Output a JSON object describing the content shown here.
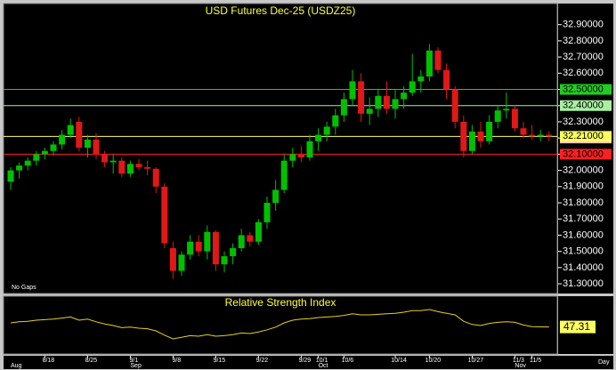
{
  "chart_data": [
    {
      "type": "candlestick",
      "title": "USD Futures Dec-25 (USDZ25)",
      "annotation": "No Gaps",
      "period": "Day",
      "up_color": "#00c000",
      "down_color": "#e01818",
      "categories": [
        null,
        null,
        null,
        null,
        "8/18",
        null,
        null,
        null,
        null,
        "8/25",
        null,
        null,
        null,
        null,
        "9/1",
        null,
        null,
        null,
        null,
        "9/8",
        null,
        null,
        null,
        null,
        "9/15",
        null,
        null,
        null,
        null,
        "9/22",
        null,
        null,
        null,
        null,
        "9/29",
        null,
        "10/1",
        null,
        null,
        "10/6",
        null,
        null,
        null,
        null,
        null,
        "10/14",
        null,
        null,
        null,
        "10/20",
        null,
        null,
        null,
        null,
        "10/27",
        null,
        null,
        null,
        null,
        "11/3",
        null,
        "11/5",
        null,
        null
      ],
      "month_labels": [
        "Aug",
        null,
        null,
        null,
        null,
        null,
        null,
        null,
        null,
        null,
        null,
        null,
        null,
        null,
        "Sep",
        null,
        null,
        null,
        null,
        null,
        null,
        null,
        null,
        null,
        null,
        null,
        null,
        null,
        null,
        null,
        null,
        null,
        null,
        null,
        null,
        null,
        "Oct",
        null,
        null,
        null,
        null,
        null,
        null,
        null,
        null,
        null,
        null,
        null,
        null,
        null,
        null,
        null,
        null,
        null,
        null,
        null,
        null,
        null,
        null,
        "Nov",
        null,
        null,
        null,
        null
      ],
      "open": [
        31.93,
        32.0,
        32.03,
        32.06,
        32.1,
        32.12,
        32.16,
        32.22,
        32.3,
        32.14,
        32.19,
        32.1,
        32.05,
        32.06,
        31.98,
        32.04,
        32.02,
        32.01,
        31.9,
        31.52,
        31.38,
        31.48,
        31.56,
        31.5,
        31.62,
        31.42,
        31.47,
        31.52,
        31.6,
        31.56,
        31.68,
        31.8,
        31.88,
        32.06,
        32.1,
        32.08,
        32.18,
        32.22,
        32.27,
        32.34,
        32.44,
        32.55,
        32.35,
        32.38,
        32.46,
        32.38,
        32.44,
        32.48,
        32.55,
        32.58,
        32.74,
        32.62,
        32.5,
        32.3,
        32.12,
        32.24,
        32.18,
        32.3,
        32.37,
        32.38,
        32.26,
        32.22,
        32.21,
        32.22
      ],
      "high": [
        32.02,
        32.05,
        32.08,
        32.12,
        32.14,
        32.18,
        32.25,
        32.32,
        32.33,
        32.22,
        32.23,
        32.12,
        32.1,
        32.08,
        32.06,
        32.07,
        32.06,
        32.02,
        31.92,
        31.56,
        31.5,
        31.6,
        31.6,
        31.66,
        31.63,
        31.5,
        31.55,
        31.64,
        31.62,
        31.7,
        31.84,
        31.94,
        32.1,
        32.14,
        32.15,
        32.22,
        32.26,
        32.3,
        32.38,
        32.48,
        32.62,
        32.6,
        32.45,
        32.5,
        32.55,
        32.5,
        32.52,
        32.72,
        32.62,
        32.78,
        32.76,
        32.66,
        32.52,
        32.34,
        32.28,
        32.3,
        32.34,
        32.4,
        32.48,
        32.4,
        32.3,
        32.28,
        32.25,
        32.24
      ],
      "low": [
        31.88,
        31.95,
        32.0,
        32.03,
        32.07,
        32.09,
        32.13,
        32.2,
        32.12,
        32.08,
        32.07,
        32.02,
        31.98,
        31.96,
        31.96,
        32.0,
        31.97,
        31.86,
        31.52,
        31.33,
        31.35,
        31.45,
        31.47,
        31.45,
        31.38,
        31.37,
        31.42,
        31.5,
        31.53,
        31.54,
        31.64,
        31.75,
        31.86,
        32.02,
        32.05,
        32.06,
        32.12,
        32.18,
        32.22,
        32.3,
        32.4,
        32.3,
        32.28,
        32.33,
        32.35,
        32.32,
        32.38,
        32.46,
        32.48,
        32.55,
        32.6,
        32.44,
        32.26,
        32.08,
        32.1,
        32.14,
        32.16,
        32.26,
        32.32,
        32.24,
        32.2,
        32.19,
        32.18,
        32.18
      ],
      "close": [
        32.0,
        32.03,
        32.06,
        32.1,
        32.12,
        32.16,
        32.22,
        32.28,
        32.14,
        32.19,
        32.1,
        32.05,
        32.06,
        31.98,
        32.04,
        32.02,
        32.01,
        31.9,
        31.55,
        31.38,
        31.48,
        31.56,
        31.5,
        31.62,
        31.42,
        31.47,
        31.52,
        31.6,
        31.56,
        31.68,
        31.8,
        31.88,
        32.06,
        32.1,
        32.08,
        32.18,
        32.22,
        32.27,
        32.34,
        32.44,
        32.55,
        32.35,
        32.38,
        32.46,
        32.38,
        32.44,
        32.48,
        32.55,
        32.58,
        32.74,
        32.62,
        32.5,
        32.3,
        32.12,
        32.24,
        32.18,
        32.3,
        32.37,
        32.38,
        32.26,
        32.22,
        32.21,
        32.22,
        32.21
      ],
      "ylim": [
        31.24,
        33.03
      ],
      "yticks": [
        {
          "value": 31.3,
          "label": "31.30000"
        },
        {
          "value": 31.4,
          "label": "31.40000"
        },
        {
          "value": 31.5,
          "label": "31.50000"
        },
        {
          "value": 31.6,
          "label": "31.60000"
        },
        {
          "value": 31.7,
          "label": "31.70000"
        },
        {
          "value": 31.8,
          "label": "31.80000"
        },
        {
          "value": 31.9,
          "label": "31.90000"
        },
        {
          "value": 32.0,
          "label": "32.00000"
        },
        {
          "value": 32.1,
          "label": "32.10000"
        },
        {
          "value": 32.2,
          "label": "32.20000"
        },
        {
          "value": 32.3,
          "label": "32.30000"
        },
        {
          "value": 32.4,
          "label": "32.40000"
        },
        {
          "value": 32.5,
          "label": "32.50000"
        },
        {
          "value": 32.6,
          "label": "32.60000"
        },
        {
          "value": 32.7,
          "label": "32.70000"
        },
        {
          "value": 32.8,
          "label": "32.80000"
        },
        {
          "value": 32.9,
          "label": "32.90000"
        }
      ],
      "highlight_ticks": [
        {
          "value": 32.2,
          "label": "32.20000",
          "color": "#f2c4c4"
        }
      ],
      "levels": [
        {
          "value": 32.5,
          "label": "32.50000",
          "color": "#22cc22"
        },
        {
          "value": 32.4,
          "label": "32.40000",
          "color": "#a8f0a0"
        },
        {
          "value": 32.21,
          "label": "32.21000",
          "color": "#ffff60"
        },
        {
          "value": 32.1,
          "label": "32.10000",
          "color": "#ff2020"
        }
      ]
    },
    {
      "type": "line",
      "title": "Relative Strength Index",
      "color": "#e8d020",
      "label_color": "#ffff60",
      "values": [
        55,
        57,
        58,
        60,
        61,
        62,
        64,
        66,
        60,
        62,
        57,
        53,
        50,
        46,
        47,
        45,
        44,
        40,
        32,
        25,
        28,
        31,
        30,
        33,
        30,
        31,
        33,
        36,
        35,
        38,
        42,
        47,
        55,
        60,
        62,
        63,
        65,
        66,
        67,
        69,
        72,
        70,
        70,
        71,
        72,
        73,
        75,
        78,
        78,
        80,
        76,
        73,
        70,
        58,
        52,
        50,
        54,
        56,
        57,
        56,
        51,
        48,
        47.5,
        47.31
      ],
      "ylim": [
        0,
        100
      ],
      "last_value": 47.31
    }
  ]
}
